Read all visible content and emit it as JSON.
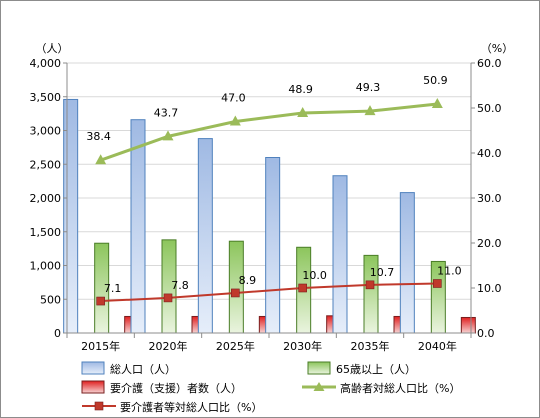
{
  "chart_data": {
    "type": "bar",
    "categories": [
      "2015年",
      "2020年",
      "2025年",
      "2030年",
      "2035年",
      "2040年"
    ],
    "left_axis": {
      "unit": "（人）",
      "ylim": [
        0,
        4000
      ],
      "ticks": [
        0,
        500,
        1000,
        1500,
        2000,
        2500,
        3000,
        3500,
        4000
      ],
      "tick_labels": [
        "0",
        "500",
        "1,000",
        "1,500",
        "2,000",
        "2,500",
        "3,000",
        "3,500",
        "4,000"
      ]
    },
    "right_axis": {
      "unit": "（%）",
      "ylim": [
        0,
        60
      ],
      "ticks": [
        0,
        10,
        20,
        30,
        40,
        50,
        60
      ],
      "tick_labels": [
        "0.0",
        "10.0",
        "20.0",
        "30.0",
        "40.0",
        "50.0",
        "60.0"
      ]
    },
    "series": [
      {
        "name": "総人口（人）",
        "kind": "bar",
        "axis": "left",
        "color": "#4f81bd",
        "values": [
          3460,
          3160,
          2880,
          2600,
          2330,
          2080
        ]
      },
      {
        "name": "65歳以上（人）",
        "kind": "bar",
        "axis": "left",
        "color": "#9bbb59",
        "values": [
          1330,
          1380,
          1360,
          1270,
          1150,
          1060
        ]
      },
      {
        "name": "要介護（支援）者数（人）",
        "kind": "bar",
        "axis": "left",
        "color": "#e03030",
        "values": [
          245,
          245,
          245,
          255,
          245,
          230
        ]
      },
      {
        "name": "高齢者対総人口比（%）",
        "kind": "line",
        "axis": "right",
        "color": "#9bbb59",
        "marker": "triangle",
        "values": [
          38.4,
          43.7,
          47.0,
          48.9,
          49.3,
          50.9
        ],
        "labels": [
          "38.4",
          "43.7",
          "47.0",
          "48.9",
          "49.3",
          "50.9"
        ]
      },
      {
        "name": "要介護者等対総人口比（%）",
        "kind": "line",
        "axis": "right",
        "color": "#c0392b",
        "marker": "square",
        "values": [
          7.1,
          7.8,
          8.9,
          10.0,
          10.7,
          11.0
        ],
        "labels": [
          "7.1",
          "7.8",
          "8.9",
          "10.0",
          "10.7",
          "11.0"
        ]
      }
    ],
    "grid": true,
    "legend_position": "bottom"
  }
}
